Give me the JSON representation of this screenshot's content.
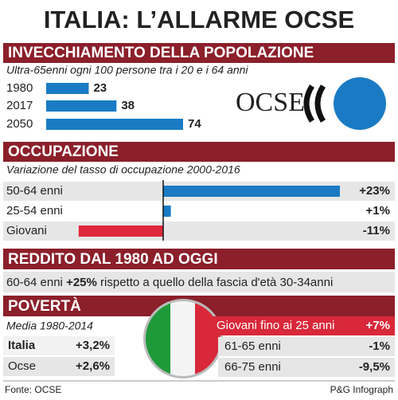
{
  "title": "ITALIA: L’ALLARME OCSE",
  "chart_data": [
    {
      "type": "bar",
      "title": "INVECCHIAMENTO DELLA POPOLAZIONE",
      "subtitle": "Ultra-65enni ogni 100 persone tra i 20 e i 64 anni",
      "categories": [
        "1980",
        "2017",
        "2050"
      ],
      "values": [
        23,
        38,
        74
      ],
      "color": "#1a7bc4"
    },
    {
      "type": "diverging-bar",
      "title": "OCCUPAZIONE",
      "subtitle": "Variazione del tasso di occupazione 2000-2016",
      "categories": [
        "50-64 enni",
        "25-54 enni",
        "Giovani"
      ],
      "values": [
        23,
        1,
        -11
      ],
      "value_labels": [
        "+23%",
        "+1%",
        "-11%"
      ],
      "colors": [
        "#1a7bc4",
        "#1a7bc4",
        "#e0283c"
      ]
    }
  ],
  "logo": "OCSE",
  "reddito": {
    "title": "REDDITO DAL 1980 AD OGGI",
    "group": "60-64 enni",
    "change": "+25%",
    "text": "rispetto a quello della fascia d'età 30-34anni"
  },
  "poverta": {
    "title": "POVERTÀ",
    "subtitle": "Media 1980-2014",
    "left": [
      [
        "Italia",
        "+3,2%"
      ],
      [
        "Ocse",
        "+2,6%"
      ]
    ],
    "right": [
      [
        "Giovani fino ai 25 anni",
        "+7%"
      ],
      [
        "61-65 enni",
        "-1%"
      ],
      [
        "66-75 enni",
        "-9,5%"
      ]
    ]
  },
  "footer": {
    "source": "Fonte: OCSE",
    "credit": "P&G Infograph"
  }
}
